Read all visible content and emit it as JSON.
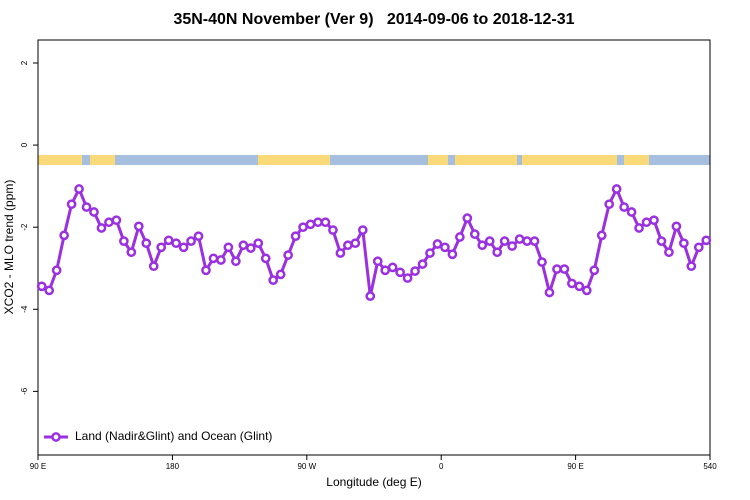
{
  "chart_data": {
    "type": "line",
    "title": "35N-40N November (Ver 9)   2014-09-06 to 2018-12-31",
    "xlabel": "Longitude (deg E)",
    "ylabel": "XCO2 - MLO trend (ppm)",
    "xlim": [
      90,
      540
    ],
    "ylim": [
      -7.55,
      2.56
    ],
    "xticks": [
      {
        "value": 90,
        "label": "90 E"
      },
      180,
      {
        "value": 270,
        "label": "90 W"
      },
      {
        "value": 360,
        "label": "0"
      },
      {
        "value": 450,
        "label": "90 E"
      },
      540
    ],
    "yticks": [
      -6,
      -4,
      -2,
      0,
      2
    ],
    "legend": "bottom-left",
    "x": [
      92.5,
      97.5,
      102.5,
      107.5,
      112.5,
      117.5,
      122.5,
      127.5,
      132.5,
      137.5,
      142.5,
      147.5,
      152.5,
      157.5,
      162.5,
      167.5,
      172.5,
      177.5,
      182.5,
      187.5,
      192.5,
      197.5,
      202.5,
      207.5,
      212.5,
      217.5,
      222.5,
      227.5,
      232.5,
      237.5,
      242.5,
      247.5,
      252.5,
      257.5,
      262.5,
      267.5,
      272.5,
      277.5,
      282.5,
      287.5,
      292.5,
      297.5,
      302.5,
      307.5,
      312.5,
      317.5,
      322.5,
      327.5,
      332.5,
      337.5,
      342.5,
      347.5,
      352.5,
      357.5,
      362.5,
      367.5,
      372.5,
      377.5,
      382.5,
      387.5,
      392.5,
      397.5,
      402.5,
      407.5,
      412.5,
      417.5,
      422.5,
      427.5,
      432.5,
      437.5,
      442.5,
      447.5,
      452.5,
      457.5,
      462.5,
      467.5,
      472.5,
      477.5,
      482.5,
      487.5,
      492.5,
      497.5,
      502.5,
      507.5,
      512.5,
      517.5,
      522.5,
      527.5,
      532.5,
      537.5
    ],
    "series": [
      {
        "name": "Land (Nadir&Glint) and Ocean (Glint)",
        "color": "#9b30e0",
        "values": [
          -3.44,
          -3.54,
          -3.05,
          -2.2,
          -1.44,
          -1.07,
          -1.51,
          -1.63,
          -2.02,
          -1.88,
          -1.83,
          -2.34,
          -2.61,
          -1.98,
          -2.39,
          -2.95,
          -2.49,
          -2.32,
          -2.39,
          -2.49,
          -2.34,
          -2.22,
          -3.05,
          -2.76,
          -2.8,
          -2.49,
          -2.83,
          -2.44,
          -2.51,
          -2.39,
          -2.76,
          -3.29,
          -3.15,
          -2.68,
          -2.22,
          -2.0,
          -1.93,
          -1.88,
          -1.88,
          -2.07,
          -2.63,
          -2.44,
          -2.39,
          -2.07,
          -3.68,
          -2.83,
          -3.05,
          -2.98,
          -3.1,
          -3.24,
          -3.07,
          -2.9,
          -2.63,
          -2.41,
          -2.49,
          -2.66,
          -2.24,
          -1.78,
          -2.17,
          -2.44,
          -2.34,
          -2.61,
          -2.34,
          -2.46,
          -2.29,
          -2.34,
          -2.34,
          -2.85,
          -3.59,
          -3.02,
          -3.02,
          -3.37,
          -3.44,
          -3.54,
          -3.05,
          -2.2,
          -1.44,
          -1.07,
          -1.51,
          -1.63,
          -2.02,
          -1.88,
          -1.83,
          -2.34,
          -2.61,
          -1.98,
          -2.39,
          -2.95,
          -2.49,
          -2.32
        ]
      }
    ]
  }
}
